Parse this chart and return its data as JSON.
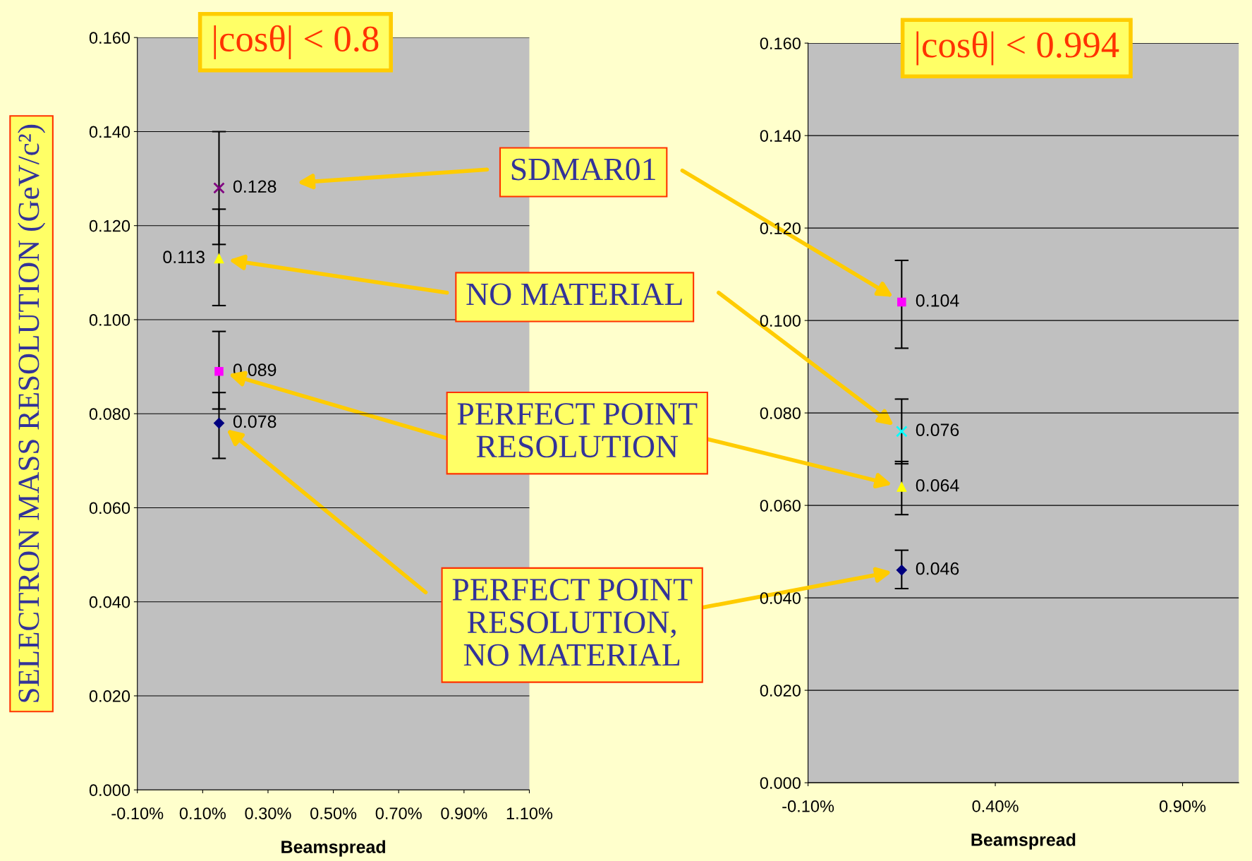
{
  "chart_data": [
    {
      "type": "scatter",
      "title": "|cosθ| < 0.8",
      "ylabel": "SELECTRON MASS RESOLUTION (GeV/c²)",
      "xlabel": "Beamspread",
      "xlim": [
        -0.1,
        1.1
      ],
      "xticks": [
        {
          "value": -0.1,
          "label": "-0.10%"
        },
        {
          "value": 0.1,
          "label": "0.10%"
        },
        {
          "value": 0.3,
          "label": "0.30%"
        },
        {
          "value": 0.5,
          "label": "0.50%"
        },
        {
          "value": 0.7,
          "label": "0.70%"
        },
        {
          "value": 0.9,
          "label": "0.90%"
        },
        {
          "value": 1.1,
          "label": "1.10%"
        }
      ],
      "ylim": [
        0,
        0.16
      ],
      "yticks": [
        {
          "value": 0,
          "label": "0.000"
        },
        {
          "value": 0.02,
          "label": "0.020"
        },
        {
          "value": 0.04,
          "label": "0.040"
        },
        {
          "value": 0.06,
          "label": "0.060"
        },
        {
          "value": 0.08,
          "label": "0.080"
        },
        {
          "value": 0.1,
          "label": "0.100"
        },
        {
          "value": 0.12,
          "label": "0.120"
        },
        {
          "value": 0.14,
          "label": "0.140"
        },
        {
          "value": 0.16,
          "label": "0.160"
        }
      ],
      "grid": "y",
      "data_labels": true,
      "x": [
        0.15
      ],
      "series": [
        {
          "name": "SDMAR01",
          "color": "#800080",
          "marker": "cross",
          "values": [
            0.128
          ],
          "errors": [
            [
              0.116,
              0.14
            ]
          ]
        },
        {
          "name": "NO MATERIAL",
          "color": "#ffff00",
          "marker": "triangle",
          "values": [
            0.113
          ],
          "errors": [
            [
              0.103,
              0.1235
            ]
          ]
        },
        {
          "name": "PERFECT POINT\nRESOLUTION",
          "color": "#ff00ff",
          "marker": "square",
          "values": [
            0.089
          ],
          "errors": [
            [
              0.081,
              0.0975
            ]
          ]
        },
        {
          "name": "PERFECT POINT\nRESOLUTION,\nNO MATERIAL",
          "color": "#000080",
          "marker": "diamond",
          "values": [
            0.078
          ],
          "errors": [
            [
              0.0705,
              0.0845
            ]
          ]
        }
      ]
    },
    {
      "type": "scatter",
      "title": "|cosθ| < 0.994",
      "xlabel": "Beamspread",
      "xlim": [
        -0.1,
        1.05
      ],
      "xticks": [
        {
          "value": -0.1,
          "label": "-0.10%"
        },
        {
          "value": 0.4,
          "label": "0.40%"
        },
        {
          "value": 0.9,
          "label": "0.90%"
        }
      ],
      "ylim": [
        0,
        0.16
      ],
      "yticks": [
        {
          "value": 0,
          "label": "0.000"
        },
        {
          "value": 0.02,
          "label": "0.020"
        },
        {
          "value": 0.04,
          "label": "0.040"
        },
        {
          "value": 0.06,
          "label": "0.060"
        },
        {
          "value": 0.08,
          "label": "0.080"
        },
        {
          "value": 0.1,
          "label": "0.100"
        },
        {
          "value": 0.12,
          "label": "0.120"
        },
        {
          "value": 0.14,
          "label": "0.140"
        },
        {
          "value": 0.16,
          "label": "0.160"
        }
      ],
      "grid": "y",
      "data_labels": true,
      "x": [
        0.15
      ],
      "series": [
        {
          "color": "#ff00ff",
          "marker": "square",
          "values": [
            0.104
          ],
          "errors": [
            [
              0.094,
              0.113
            ]
          ]
        },
        {
          "color": "#00ffff",
          "marker": "cross",
          "values": [
            0.076
          ],
          "errors": [
            [
              0.069,
              0.083
            ]
          ]
        },
        {
          "color": "#ffff00",
          "marker": "triangle",
          "values": [
            0.064
          ],
          "errors": [
            [
              0.058,
              0.0695
            ]
          ]
        },
        {
          "color": "#000080",
          "marker": "diamond",
          "values": [
            0.046
          ],
          "errors": [
            [
              0.042,
              0.0503
            ]
          ]
        }
      ]
    }
  ]
}
